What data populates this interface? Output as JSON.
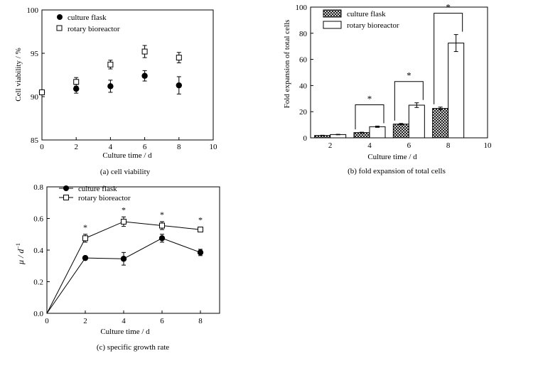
{
  "colors": {
    "ink": "#000000",
    "background": "#ffffff"
  },
  "chart_data": [
    {
      "id": "a",
      "type": "scatter",
      "caption": "(a) cell viability",
      "xlabel": "Culture time / d",
      "ylabel": "Cell viability / %",
      "xlim": [
        0,
        10
      ],
      "ylim": [
        85,
        100
      ],
      "x_ticks": [
        "0",
        "2",
        "4",
        "6",
        "8",
        "10"
      ],
      "y_ticks": [
        "85",
        "90",
        "95",
        "100"
      ],
      "legend_position": "top-left",
      "series": [
        {
          "name": "culture flask",
          "marker": "filled-circle",
          "x": [
            0,
            2,
            4,
            6,
            8
          ],
          "y": [
            90.5,
            90.9,
            91.2,
            92.4,
            91.3
          ],
          "err": [
            0.2,
            0.5,
            0.7,
            0.6,
            1.0
          ]
        },
        {
          "name": "rotary bioreactor",
          "marker": "open-square",
          "x": [
            0,
            2,
            4,
            6,
            8
          ],
          "y": [
            90.5,
            91.7,
            93.7,
            95.2,
            94.5
          ],
          "err": [
            0.2,
            0.5,
            0.5,
            0.7,
            0.6
          ]
        }
      ]
    },
    {
      "id": "b",
      "type": "bar",
      "caption": "(b) fold expansion of total cells",
      "xlabel": "Culture time / d",
      "ylabel": "Fold expansion of total cells",
      "xlim": [
        1,
        10
      ],
      "ylim": [
        0,
        100
      ],
      "x_ticks": [
        "2",
        "4",
        "6",
        "8",
        "10"
      ],
      "y_ticks": [
        "0",
        "20",
        "40",
        "60",
        "80",
        "100"
      ],
      "legend_position": "top-left",
      "categories": [
        2,
        4,
        6,
        8
      ],
      "series": [
        {
          "name": "culture flask",
          "fill": "crosshatch",
          "values": [
            1.8,
            4.0,
            10.5,
            22.5
          ],
          "err": [
            0.2,
            0.3,
            0.5,
            1.0
          ]
        },
        {
          "name": "rotary bioreactor",
          "fill": "white",
          "values": [
            2.5,
            8.5,
            25.0,
            72.5
          ],
          "err": [
            0.2,
            0.5,
            1.8,
            6.5
          ]
        }
      ],
      "significance": [
        "",
        "*",
        "*",
        "*"
      ]
    },
    {
      "id": "c",
      "type": "line",
      "caption": "(c) specific growth rate",
      "xlabel": "Culture time / d",
      "ylabel_main": "μ / d",
      "ylabel_sup": "−1",
      "xlim": [
        0,
        9
      ],
      "ylim": [
        0,
        0.8
      ],
      "x_ticks": [
        "0",
        "2",
        "4",
        "6",
        "8"
      ],
      "y_ticks": [
        "0.0",
        "0.2",
        "0.4",
        "0.6",
        "0.8"
      ],
      "legend_position": "top-left",
      "series": [
        {
          "name": "culture flask",
          "marker": "filled-circle",
          "x": [
            0,
            2,
            4,
            6,
            8
          ],
          "y": [
            0,
            0.35,
            0.345,
            0.475,
            0.385
          ],
          "err": [
            0,
            0,
            0.04,
            0.025,
            0.02
          ]
        },
        {
          "name": "rotary bioreactor",
          "marker": "open-square",
          "x": [
            0,
            2,
            4,
            6,
            8
          ],
          "y": [
            0,
            0.475,
            0.58,
            0.555,
            0.53
          ],
          "err": [
            0,
            0.025,
            0.03,
            0.025,
            0.015
          ]
        }
      ],
      "significance": [
        "",
        "*",
        "*",
        "*",
        "*"
      ]
    }
  ]
}
